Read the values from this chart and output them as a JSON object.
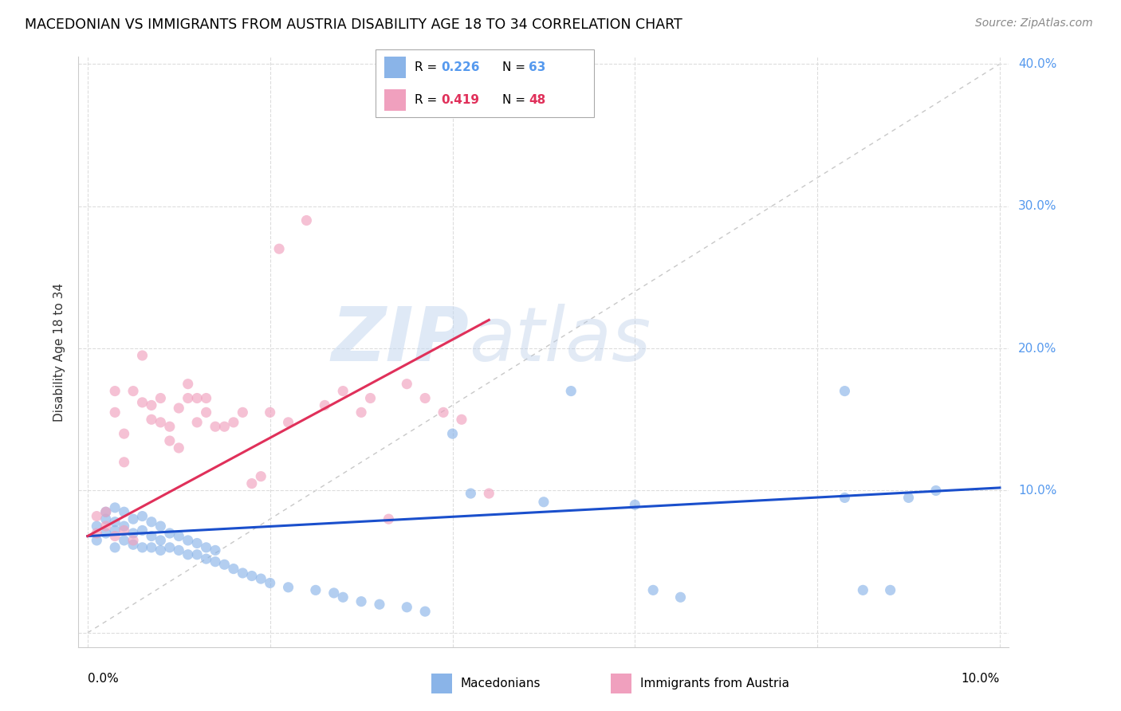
{
  "title": "MACEDONIAN VS IMMIGRANTS FROM AUSTRIA DISABILITY AGE 18 TO 34 CORRELATION CHART",
  "source": "Source: ZipAtlas.com",
  "ylabel": "Disability Age 18 to 34",
  "macedonian_color": "#8ab4e8",
  "austria_color": "#f0a0be",
  "blue_line_color": "#1a4fcc",
  "pink_line_color": "#e0305a",
  "diagonal_color": "#c8c8c8",
  "xlim": [
    0.0,
    0.1
  ],
  "ylim": [
    0.0,
    0.4
  ],
  "mac_x": [
    0.001,
    0.001,
    0.002,
    0.002,
    0.002,
    0.003,
    0.003,
    0.003,
    0.003,
    0.004,
    0.004,
    0.004,
    0.005,
    0.005,
    0.005,
    0.006,
    0.006,
    0.006,
    0.007,
    0.007,
    0.007,
    0.008,
    0.008,
    0.008,
    0.009,
    0.009,
    0.01,
    0.01,
    0.011,
    0.011,
    0.012,
    0.012,
    0.013,
    0.013,
    0.014,
    0.014,
    0.015,
    0.016,
    0.017,
    0.018,
    0.019,
    0.02,
    0.022,
    0.025,
    0.027,
    0.028,
    0.03,
    0.032,
    0.035,
    0.037,
    0.04,
    0.042,
    0.05,
    0.053,
    0.06,
    0.062,
    0.065,
    0.083,
    0.083,
    0.085,
    0.088,
    0.09,
    0.093
  ],
  "mac_y": [
    0.065,
    0.075,
    0.07,
    0.08,
    0.085,
    0.06,
    0.072,
    0.078,
    0.088,
    0.065,
    0.075,
    0.085,
    0.062,
    0.07,
    0.08,
    0.06,
    0.072,
    0.082,
    0.06,
    0.068,
    0.078,
    0.058,
    0.065,
    0.075,
    0.06,
    0.07,
    0.058,
    0.068,
    0.055,
    0.065,
    0.055,
    0.063,
    0.052,
    0.06,
    0.05,
    0.058,
    0.048,
    0.045,
    0.042,
    0.04,
    0.038,
    0.035,
    0.032,
    0.03,
    0.028,
    0.025,
    0.022,
    0.02,
    0.018,
    0.015,
    0.14,
    0.098,
    0.092,
    0.17,
    0.09,
    0.03,
    0.025,
    0.095,
    0.17,
    0.03,
    0.03,
    0.095,
    0.1
  ],
  "aut_x": [
    0.001,
    0.001,
    0.002,
    0.002,
    0.003,
    0.003,
    0.003,
    0.004,
    0.004,
    0.004,
    0.005,
    0.005,
    0.006,
    0.006,
    0.007,
    0.007,
    0.008,
    0.008,
    0.009,
    0.009,
    0.01,
    0.01,
    0.011,
    0.011,
    0.012,
    0.012,
    0.013,
    0.013,
    0.014,
    0.015,
    0.016,
    0.017,
    0.018,
    0.019,
    0.02,
    0.021,
    0.022,
    0.024,
    0.026,
    0.028,
    0.03,
    0.031,
    0.033,
    0.035,
    0.037,
    0.039,
    0.041,
    0.044
  ],
  "aut_y": [
    0.07,
    0.082,
    0.075,
    0.085,
    0.068,
    0.155,
    0.17,
    0.072,
    0.12,
    0.14,
    0.065,
    0.17,
    0.162,
    0.195,
    0.15,
    0.16,
    0.148,
    0.165,
    0.135,
    0.145,
    0.13,
    0.158,
    0.165,
    0.175,
    0.148,
    0.165,
    0.155,
    0.165,
    0.145,
    0.145,
    0.148,
    0.155,
    0.105,
    0.11,
    0.155,
    0.27,
    0.148,
    0.29,
    0.16,
    0.17,
    0.155,
    0.165,
    0.08,
    0.175,
    0.165,
    0.155,
    0.15,
    0.098
  ],
  "blue_line_x": [
    0.0,
    0.1
  ],
  "blue_line_y": [
    0.068,
    0.102
  ],
  "pink_line_x": [
    0.0,
    0.044
  ],
  "pink_line_y": [
    0.068,
    0.22
  ]
}
